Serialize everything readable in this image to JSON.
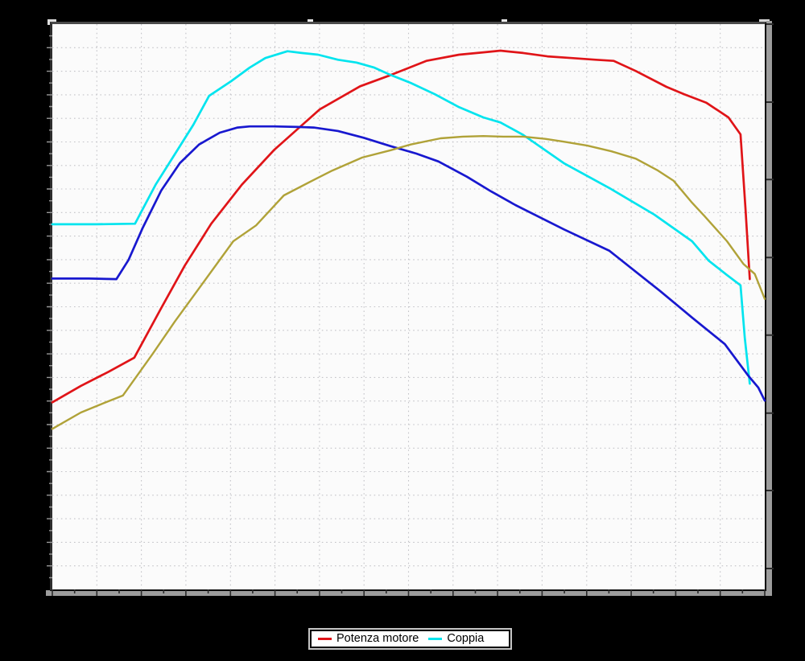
{
  "window": {
    "background_color": "#000000",
    "plot_background_color": "#fbfbfb"
  },
  "title_box": {
    "text": ""
  },
  "legend": {
    "position": "bottom-center",
    "items": [
      {
        "label": "Potenza motore",
        "color": "#e01418"
      },
      {
        "label": "Coppia",
        "color": "#00e4ee"
      }
    ]
  },
  "chart_data": {
    "type": "line",
    "title": "",
    "xlabel": "",
    "ylabel": "",
    "grid": true,
    "axis_tick_labels_visible": false,
    "units_note": "axis labels are not legible in the image; points are percent of plot area, x: 0=left axis 100=right edge, y: 0=bottom axis 100=top",
    "x_axis": {
      "gridline_count": 15,
      "minor_ticks": true,
      "labels_visible": false
    },
    "y_axis_left": {
      "gridline_count": 23,
      "minor_ticks": true,
      "labels_visible": false
    },
    "y_axis_right": {
      "tick_ys_pct": [
        100,
        86.2,
        72.5,
        58.7,
        45.0,
        31.2,
        17.5,
        3.7
      ],
      "labels_visible": false
    },
    "series": [
      {
        "name": "Potenza motore",
        "color": "#e01418",
        "width": 2.7,
        "points_pct": [
          [
            0,
            33.1
          ],
          [
            4.0,
            36.0
          ],
          [
            7.9,
            38.5
          ],
          [
            11.5,
            41.0
          ],
          [
            15.3,
            49.8
          ],
          [
            18.6,
            57.3
          ],
          [
            22.3,
            64.7
          ],
          [
            26.6,
            71.6
          ],
          [
            31.1,
            77.7
          ],
          [
            37.5,
            84.9
          ],
          [
            43.2,
            89.0
          ],
          [
            47.5,
            91.0
          ],
          [
            52.5,
            93.5
          ],
          [
            57.1,
            94.6
          ],
          [
            60.5,
            95.0
          ],
          [
            62.9,
            95.3
          ],
          [
            66.1,
            94.9
          ],
          [
            69.5,
            94.3
          ],
          [
            72.9,
            94.0
          ],
          [
            76.3,
            93.7
          ],
          [
            78.8,
            93.5
          ],
          [
            81.9,
            91.7
          ],
          [
            86.2,
            88.9
          ],
          [
            88.7,
            87.6
          ],
          [
            91.8,
            86.1
          ],
          [
            94.9,
            83.5
          ],
          [
            96.6,
            80.5
          ],
          [
            97.3,
            67.3
          ],
          [
            97.9,
            54.9
          ]
        ]
      },
      {
        "name": "Coppia",
        "color": "#00e4ee",
        "width": 2.7,
        "points_pct": [
          [
            0,
            64.6
          ],
          [
            6.2,
            64.6
          ],
          [
            11.6,
            64.7
          ],
          [
            14.5,
            71.6
          ],
          [
            16.9,
            76.4
          ],
          [
            19.8,
            82.2
          ],
          [
            22.0,
            87.3
          ],
          [
            25.1,
            89.9
          ],
          [
            27.7,
            92.3
          ],
          [
            29.9,
            94.0
          ],
          [
            33.0,
            95.2
          ],
          [
            35.0,
            94.9
          ],
          [
            37.3,
            94.6
          ],
          [
            40.1,
            93.7
          ],
          [
            42.7,
            93.2
          ],
          [
            45.2,
            92.3
          ],
          [
            47.5,
            91.0
          ],
          [
            50.3,
            89.6
          ],
          [
            53.7,
            87.6
          ],
          [
            57.1,
            85.3
          ],
          [
            60.5,
            83.5
          ],
          [
            62.9,
            82.6
          ],
          [
            66.1,
            80.4
          ],
          [
            71.8,
            75.4
          ],
          [
            78.2,
            71.0
          ],
          [
            84.5,
            66.3
          ],
          [
            89.8,
            61.6
          ],
          [
            92.1,
            58.2
          ],
          [
            94.7,
            55.6
          ],
          [
            96.6,
            53.8
          ],
          [
            97.2,
            44.5
          ],
          [
            97.9,
            36.4
          ]
        ]
      },
      {
        "name": "unlabeled-blue-curve",
        "color": "#1818cf",
        "width": 2.7,
        "points_pct": [
          [
            0,
            55.0
          ],
          [
            5.1,
            55.0
          ],
          [
            9.0,
            54.9
          ],
          [
            10.7,
            58.3
          ],
          [
            12.7,
            64.0
          ],
          [
            15.3,
            70.6
          ],
          [
            17.9,
            75.4
          ],
          [
            20.6,
            78.7
          ],
          [
            23.5,
            80.8
          ],
          [
            26.0,
            81.7
          ],
          [
            27.7,
            81.9
          ],
          [
            31.1,
            81.9
          ],
          [
            34.5,
            81.8
          ],
          [
            36.7,
            81.7
          ],
          [
            40.1,
            81.1
          ],
          [
            43.7,
            79.9
          ],
          [
            47.5,
            78.4
          ],
          [
            51.1,
            77.1
          ],
          [
            54.2,
            75.7
          ],
          [
            58.2,
            73.0
          ],
          [
            61.6,
            70.4
          ],
          [
            65.0,
            68.0
          ],
          [
            71.8,
            63.7
          ],
          [
            78.2,
            59.9
          ],
          [
            81.9,
            56.2
          ],
          [
            85.3,
            52.8
          ],
          [
            89.8,
            48.1
          ],
          [
            94.4,
            43.4
          ],
          [
            97.7,
            37.8
          ],
          [
            99.1,
            35.7
          ],
          [
            100,
            33.4
          ]
        ]
      },
      {
        "name": "unlabeled-olive-curve",
        "color": "#b0a238",
        "width": 2.4,
        "points_pct": [
          [
            0,
            28.4
          ],
          [
            4.0,
            31.3
          ],
          [
            7.3,
            33.0
          ],
          [
            9.9,
            34.3
          ],
          [
            14.1,
            41.7
          ],
          [
            17.2,
            47.4
          ],
          [
            20.9,
            53.8
          ],
          [
            25.4,
            61.6
          ],
          [
            28.6,
            64.4
          ],
          [
            32.5,
            69.7
          ],
          [
            37.1,
            72.7
          ],
          [
            39.3,
            74.1
          ],
          [
            43.5,
            76.4
          ],
          [
            47.5,
            77.7
          ],
          [
            50.3,
            78.7
          ],
          [
            54.5,
            79.8
          ],
          [
            57.6,
            80.1
          ],
          [
            60.5,
            80.2
          ],
          [
            63.3,
            80.1
          ],
          [
            66.1,
            80.1
          ],
          [
            69.2,
            79.7
          ],
          [
            71.8,
            79.2
          ],
          [
            75.1,
            78.5
          ],
          [
            78.5,
            77.5
          ],
          [
            81.9,
            76.2
          ],
          [
            85.0,
            74.1
          ],
          [
            87.2,
            72.3
          ],
          [
            89.8,
            68.4
          ],
          [
            91.5,
            66.1
          ],
          [
            94.7,
            61.6
          ],
          [
            97.0,
            57.6
          ],
          [
            98.6,
            55.8
          ],
          [
            100,
            51.4
          ]
        ]
      }
    ],
    "legend_entries": [
      "Potenza motore",
      "Coppia"
    ],
    "style": {
      "gridline_color": "#c3c3c8",
      "tick_color_outer": "#999999",
      "tick_color_band": "#2a2a2a"
    }
  }
}
